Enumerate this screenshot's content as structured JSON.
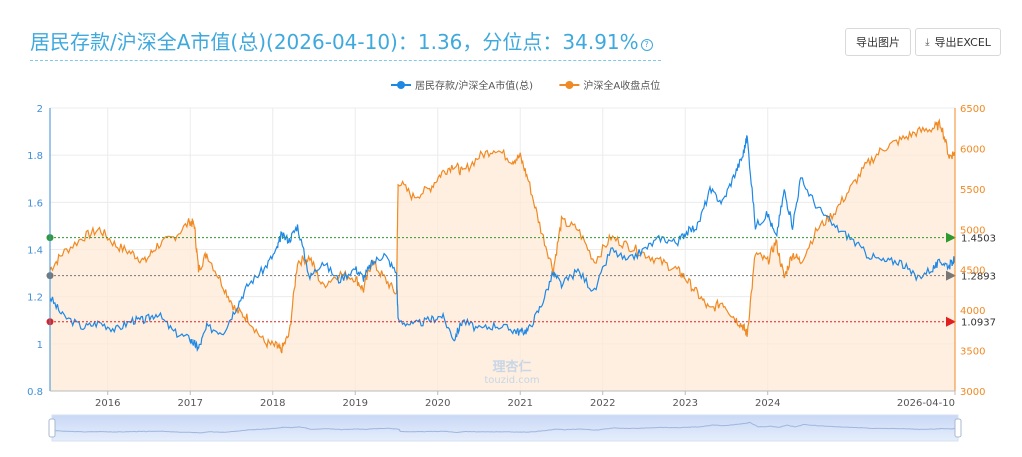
{
  "header": {
    "title": "居民存款/沪深全A市值(总)(2026-04-10)：1.36，分位点：34.91%",
    "help_icon": "help-circle-icon",
    "export_image_label": "导出图片",
    "export_excel_label": "导出EXCEL",
    "download_icon": "download-icon"
  },
  "chart_data": {
    "type": "line",
    "legend": [
      "居民存款/沪深全A市值(总)",
      "沪深全A收盘点位"
    ],
    "legend_position": "top-center",
    "x_tick_labels": [
      "2016",
      "2017",
      "2018",
      "2019",
      "2020",
      "2021",
      "2022",
      "2023",
      "2024",
      "2026-04-10"
    ],
    "y_left": {
      "min": 0.8,
      "max": 2.0,
      "ticks": [
        "0.8",
        "1",
        "1.2",
        "1.4",
        "1.6",
        "1.8",
        "2"
      ],
      "tick_values": [
        0.8,
        1.0,
        1.2,
        1.4,
        1.6,
        1.8,
        2.0
      ]
    },
    "y_right": {
      "min": 3000,
      "max": 6500,
      "ticks": [
        "3000",
        "3500",
        "4000",
        "4500",
        "5000",
        "5500",
        "6000",
        "6500"
      ],
      "tick_values": [
        3000,
        3500,
        4000,
        4500,
        5000,
        5500,
        6000,
        6500
      ]
    },
    "time_range": [
      2015.3,
      2026.27
    ],
    "year_tick_positions": [
      2016,
      2017,
      2018,
      2019,
      2020,
      2021,
      2022,
      2023,
      2024,
      2026.27
    ],
    "reference_lines": [
      {
        "label": "1.4503",
        "value": 1.4503,
        "color": "#2e9a2e"
      },
      {
        "label": "1.2893",
        "value": 1.2893,
        "color": "#777777"
      },
      {
        "label": "1.0937",
        "value": 1.0937,
        "color": "#e02020"
      }
    ],
    "series": [
      {
        "name": "居民存款/沪深全A市值(总)",
        "axis": "left",
        "color": "#1e88e5",
        "x": [
          2015.3,
          2015.45,
          2015.7,
          2015.9,
          2016.1,
          2016.3,
          2016.45,
          2016.6,
          2016.8,
          2017.0,
          2017.05,
          2017.1,
          2017.2,
          2017.4,
          2017.55,
          2017.7,
          2017.9,
          2018.05,
          2018.1,
          2018.2,
          2018.3,
          2018.45,
          2018.6,
          2018.8,
          2019.0,
          2019.1,
          2019.2,
          2019.35,
          2019.5,
          2019.52,
          2019.7,
          2019.9,
          2020.05,
          2020.2,
          2020.3,
          2020.5,
          2020.7,
          2020.9,
          2021.0,
          2021.1,
          2021.25,
          2021.4,
          2021.5,
          2021.7,
          2021.9,
          2022.1,
          2022.3,
          2022.5,
          2022.7,
          2022.9,
          2023.0,
          2023.15,
          2023.3,
          2023.45,
          2023.6,
          2023.7,
          2023.75,
          2023.85,
          2024.0,
          2024.1,
          2024.2,
          2024.3,
          2024.4,
          2024.6,
          2024.8,
          2025.0,
          2025.2,
          2025.4,
          2025.6,
          2025.8,
          2026.0,
          2026.1,
          2026.2,
          2026.27
        ],
        "values": [
          1.2,
          1.12,
          1.07,
          1.09,
          1.06,
          1.1,
          1.1,
          1.13,
          1.05,
          1.02,
          1.0,
          0.98,
          1.07,
          1.05,
          1.15,
          1.25,
          1.32,
          1.4,
          1.46,
          1.44,
          1.5,
          1.28,
          1.35,
          1.27,
          1.32,
          1.28,
          1.34,
          1.38,
          1.3,
          1.1,
          1.08,
          1.1,
          1.12,
          1.02,
          1.1,
          1.06,
          1.08,
          1.06,
          1.05,
          1.06,
          1.16,
          1.3,
          1.25,
          1.31,
          1.22,
          1.4,
          1.35,
          1.4,
          1.45,
          1.43,
          1.47,
          1.5,
          1.65,
          1.6,
          1.72,
          1.8,
          1.88,
          1.5,
          1.55,
          1.45,
          1.65,
          1.5,
          1.7,
          1.58,
          1.5,
          1.45,
          1.38,
          1.35,
          1.35,
          1.28,
          1.32,
          1.35,
          1.33,
          1.36
        ]
      },
      {
        "name": "沪深全A收盘点位",
        "axis": "right",
        "color": "#f08a24",
        "x": [
          2015.3,
          2015.45,
          2015.7,
          2015.9,
          2016.1,
          2016.3,
          2016.45,
          2016.6,
          2016.8,
          2017.0,
          2017.05,
          2017.1,
          2017.2,
          2017.4,
          2017.55,
          2017.7,
          2017.9,
          2018.05,
          2018.1,
          2018.2,
          2018.3,
          2018.45,
          2018.6,
          2018.8,
          2019.0,
          2019.1,
          2019.2,
          2019.35,
          2019.5,
          2019.52,
          2019.7,
          2019.9,
          2020.05,
          2020.2,
          2020.3,
          2020.5,
          2020.7,
          2020.9,
          2021.0,
          2021.1,
          2021.25,
          2021.4,
          2021.5,
          2021.7,
          2021.9,
          2022.1,
          2022.3,
          2022.5,
          2022.7,
          2022.9,
          2023.0,
          2023.15,
          2023.3,
          2023.45,
          2023.6,
          2023.7,
          2023.75,
          2023.85,
          2024.0,
          2024.1,
          2024.2,
          2024.3,
          2024.4,
          2024.6,
          2024.8,
          2025.0,
          2025.2,
          2025.4,
          2025.6,
          2025.8,
          2026.0,
          2026.1,
          2026.2,
          2026.27
        ],
        "values": [
          4500,
          4700,
          4900,
          5000,
          4800,
          4700,
          4600,
          4800,
          4900,
          5100,
          5050,
          4500,
          4700,
          4300,
          4000,
          3900,
          3600,
          3550,
          3500,
          3700,
          4600,
          4650,
          4300,
          4450,
          4400,
          4250,
          4600,
          4400,
          4200,
          5600,
          5400,
          5500,
          5700,
          5800,
          5700,
          5900,
          6000,
          5850,
          5900,
          5600,
          5000,
          4500,
          5100,
          5000,
          4600,
          4900,
          4800,
          4700,
          4600,
          4500,
          4400,
          4200,
          4000,
          4100,
          3900,
          3800,
          3700,
          4700,
          4600,
          4850,
          4400,
          4700,
          4600,
          5000,
          5200,
          5500,
          5800,
          6000,
          6100,
          6200,
          6250,
          6300,
          5900,
          5950
        ]
      }
    ]
  }
}
